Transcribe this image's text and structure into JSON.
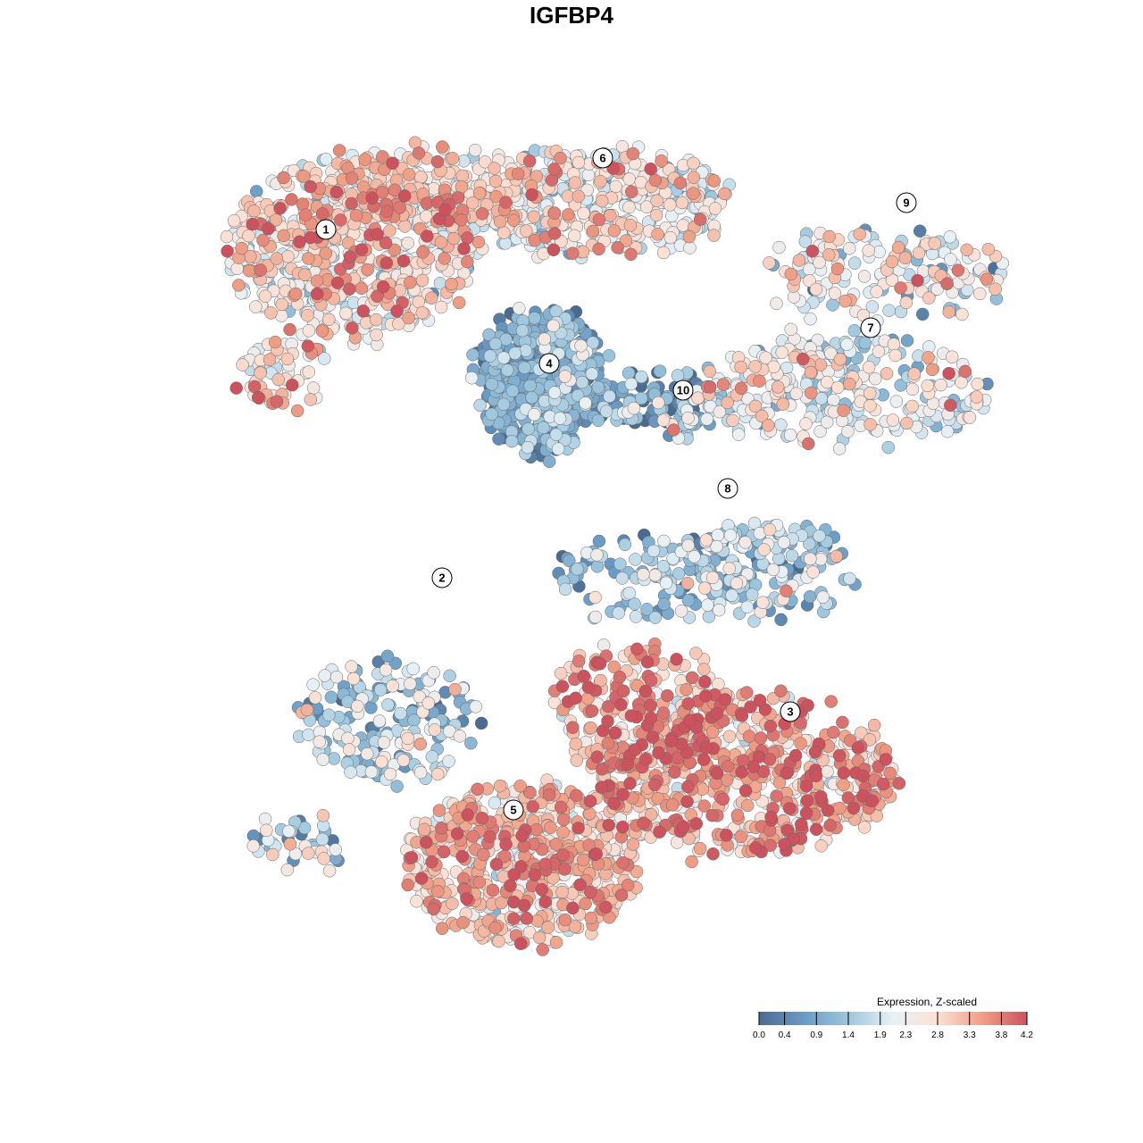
{
  "chart_data": {
    "type": "scatter",
    "title": "IGFBP4",
    "xlabel": "",
    "ylabel": "",
    "grid": false,
    "color_scale": {
      "title": "Expression, Z-scaled",
      "ticks": [
        0.0,
        0.4,
        0.9,
        1.4,
        1.9,
        2.3,
        2.8,
        3.3,
        3.8,
        4.2
      ],
      "tick_labels": [
        "0.0",
        "0.4",
        "0.9",
        "1.4",
        "1.9",
        "2.3",
        "2.8",
        "3.3",
        "3.8",
        "4.2"
      ],
      "min": 0.0,
      "max": 4.2,
      "colors": [
        "#4a6b91",
        "#6a9bc5",
        "#9dc6dd",
        "#e8f1f6",
        "#fbe0d4",
        "#ef9f86",
        "#cc525e"
      ],
      "legend_position": "bottom-right"
    },
    "clusters": [
      {
        "label": "1",
        "x": -25,
        "y": 23,
        "mean_expression": 2.7
      },
      {
        "label": "2",
        "x": -12,
        "y": -16,
        "mean_expression": 1.5
      },
      {
        "label": "3",
        "x": 27,
        "y": -31,
        "mean_expression": 3.3
      },
      {
        "label": "4",
        "x": 0,
        "y": 8,
        "mean_expression": 0.9
      },
      {
        "label": "5",
        "x": -4,
        "y": -42,
        "mean_expression": 3.0
      },
      {
        "label": "6",
        "x": 6,
        "y": 31,
        "mean_expression": 2.3
      },
      {
        "label": "7",
        "x": 36,
        "y": 12,
        "mean_expression": 2.2
      },
      {
        "label": "8",
        "x": 20,
        "y": -6,
        "mean_expression": 1.4
      },
      {
        "label": "9",
        "x": 40,
        "y": 26,
        "mean_expression": 2.2
      },
      {
        "label": "10",
        "x": 15,
        "y": 5,
        "mean_expression": 1.2
      }
    ]
  }
}
